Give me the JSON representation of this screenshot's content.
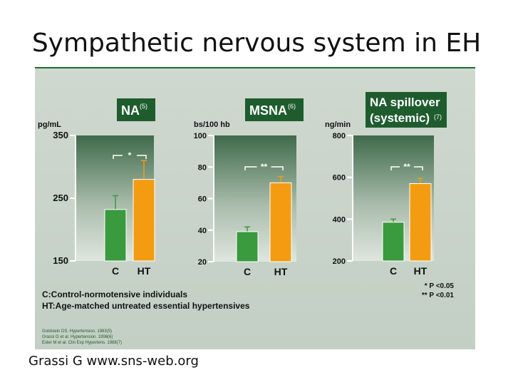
{
  "slide": {
    "title": "Sympathetic nervous system in EH",
    "caption": "Grassi G www.sns-web.org"
  },
  "colors": {
    "control": "#3a9a3e",
    "hypertensive": "#f39c12",
    "header_bg": "#1e5c2e"
  },
  "chart_data": [
    {
      "type": "bar",
      "title": "NA",
      "title_sup": "(5)",
      "ylabel": "pg/mL",
      "ylim": [
        150,
        350
      ],
      "yticks": [
        "150",
        "250",
        "350"
      ],
      "yticks_values": [
        150,
        250,
        350
      ],
      "categories": [
        "C",
        "HT"
      ],
      "values": [
        232,
        280
      ],
      "errors": [
        22,
        30
      ],
      "significance": "*"
    },
    {
      "type": "bar",
      "title": "MSNA",
      "title_sup": "(6)",
      "ylabel": "bs/100 hb",
      "ylim": [
        20,
        100
      ],
      "yticks": [
        "20",
        "40",
        "60",
        "80",
        "100"
      ],
      "yticks_values": [
        20,
        40,
        60,
        80,
        100
      ],
      "categories": [
        "C",
        "HT"
      ],
      "values": [
        39,
        70
      ],
      "errors": [
        3,
        4
      ],
      "significance": "**"
    },
    {
      "type": "bar",
      "title": "NA spillover",
      "title_line2": "(systemic)",
      "title_sup": "(7)",
      "ylabel": "ng/min",
      "ylim": [
        200,
        800
      ],
      "yticks": [
        "200",
        "400",
        "600",
        "800"
      ],
      "yticks_values": [
        200,
        400,
        600,
        800
      ],
      "categories": [
        "C",
        "HT"
      ],
      "values": [
        385,
        570
      ],
      "errors": [
        15,
        25
      ],
      "significance": "**"
    }
  ],
  "pvalues": [
    "* P <0.05",
    "** P <0.01"
  ],
  "legend": [
    "C:Control-normotensive individuals",
    "HT:Age-matched untreated essential hypertensives"
  ],
  "references": [
    "Goldstein DS. Hypertension. 1983(5)",
    "Grassi G et al. Hypertension. 1998(6)",
    "Esler M et al. Clin Exp Hypertens. 1988(7)"
  ]
}
